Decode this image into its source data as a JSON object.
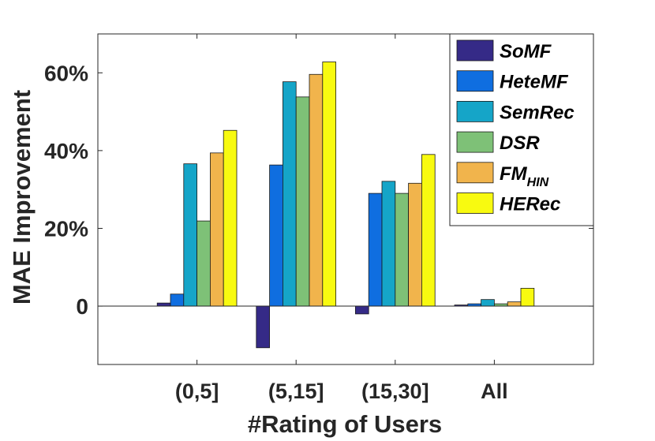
{
  "chart_data": {
    "type": "bar",
    "title": "",
    "xlabel": "#Rating of Users",
    "ylabel": "MAE Improvement",
    "categories": [
      "(0,5]",
      "(5,15]",
      "(15,30]",
      "All"
    ],
    "ylim": [
      -0.15,
      0.7
    ],
    "yticks": [
      0,
      0.2,
      0.4,
      0.6
    ],
    "ytick_labels": [
      "0",
      "20%",
      "40%",
      "60%"
    ],
    "grid": false,
    "legend_position": "top-right",
    "series": [
      {
        "name": "SoMF",
        "color": "#352a87",
        "values": [
          0.008,
          -0.107,
          -0.02,
          0.003
        ]
      },
      {
        "name": "HeteMF",
        "color": "#0f6ee0",
        "values": [
          0.031,
          0.363,
          0.29,
          0.006
        ]
      },
      {
        "name": "SemRec",
        "color": "#15a5c8",
        "values": [
          0.366,
          0.577,
          0.321,
          0.017
        ]
      },
      {
        "name": "DSR",
        "color": "#7ec177",
        "values": [
          0.219,
          0.538,
          0.29,
          0.006
        ]
      },
      {
        "name": "FM",
        "name_subscript": "HIN",
        "color": "#f1b44c",
        "values": [
          0.394,
          0.596,
          0.316,
          0.011
        ]
      },
      {
        "name": "HERec",
        "color": "#f8fa10",
        "values": [
          0.452,
          0.628,
          0.39,
          0.046
        ]
      }
    ]
  }
}
